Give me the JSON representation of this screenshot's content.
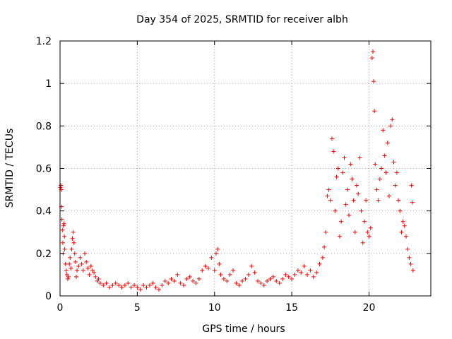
{
  "chart_data": {
    "type": "scatter",
    "title": "Day 354 of 2025, SRMTID for receiver albh",
    "xlabel": "GPS time / hours",
    "ylabel": "SRMTID / TECUs",
    "xlim": [
      0,
      24
    ],
    "ylim": [
      0,
      1.2
    ],
    "xticks": [
      0,
      5,
      10,
      15,
      20
    ],
    "xtick_labels": [
      "0",
      "5",
      "10",
      "15",
      "20"
    ],
    "yticks": [
      0,
      0.2,
      0.4,
      0.6,
      0.8,
      1.0,
      1.2
    ],
    "ytick_labels": [
      "0",
      "0.2",
      "0.4",
      "0.6",
      "0.8",
      "1",
      "1.2"
    ],
    "grid": true,
    "marker": "+",
    "color": "#ff0000",
    "series": [
      {
        "name": "SRMTID",
        "points": [
          [
            0.02,
            0.51
          ],
          [
            0.05,
            0.52
          ],
          [
            0.08,
            0.5
          ],
          [
            0.1,
            0.42
          ],
          [
            0.12,
            0.36
          ],
          [
            0.15,
            0.31
          ],
          [
            0.18,
            0.25
          ],
          [
            0.2,
            0.2
          ],
          [
            0.22,
            0.33
          ],
          [
            0.25,
            0.34
          ],
          [
            0.28,
            0.28
          ],
          [
            0.3,
            0.22
          ],
          [
            0.35,
            0.15
          ],
          [
            0.4,
            0.12
          ],
          [
            0.45,
            0.1
          ],
          [
            0.5,
            0.08
          ],
          [
            0.55,
            0.09
          ],
          [
            0.6,
            0.15
          ],
          [
            0.65,
            0.18
          ],
          [
            0.7,
            0.13
          ],
          [
            0.75,
            0.22
          ],
          [
            0.8,
            0.27
          ],
          [
            0.85,
            0.3
          ],
          [
            0.9,
            0.25
          ],
          [
            0.95,
            0.2
          ],
          [
            1.0,
            0.16
          ],
          [
            1.05,
            0.09
          ],
          [
            1.1,
            0.12
          ],
          [
            1.2,
            0.14
          ],
          [
            1.3,
            0.18
          ],
          [
            1.4,
            0.15
          ],
          [
            1.5,
            0.12
          ],
          [
            1.6,
            0.2
          ],
          [
            1.7,
            0.16
          ],
          [
            1.8,
            0.13
          ],
          [
            1.9,
            0.1
          ],
          [
            2.0,
            0.14
          ],
          [
            2.1,
            0.12
          ],
          [
            2.2,
            0.11
          ],
          [
            2.3,
            0.09
          ],
          [
            2.4,
            0.07
          ],
          [
            2.5,
            0.08
          ],
          [
            2.6,
            0.06
          ],
          [
            2.8,
            0.05
          ],
          [
            3.0,
            0.06
          ],
          [
            3.2,
            0.04
          ],
          [
            3.4,
            0.05
          ],
          [
            3.6,
            0.06
          ],
          [
            3.8,
            0.05
          ],
          [
            4.0,
            0.04
          ],
          [
            4.2,
            0.05
          ],
          [
            4.4,
            0.06
          ],
          [
            4.6,
            0.04
          ],
          [
            4.8,
            0.05
          ],
          [
            5.0,
            0.04
          ],
          [
            5.2,
            0.03
          ],
          [
            5.4,
            0.05
          ],
          [
            5.6,
            0.04
          ],
          [
            5.8,
            0.05
          ],
          [
            6.0,
            0.06
          ],
          [
            6.2,
            0.04
          ],
          [
            6.4,
            0.03
          ],
          [
            6.6,
            0.05
          ],
          [
            6.8,
            0.07
          ],
          [
            7.0,
            0.06
          ],
          [
            7.2,
            0.08
          ],
          [
            7.4,
            0.07
          ],
          [
            7.6,
            0.1
          ],
          [
            7.8,
            0.06
          ],
          [
            8.0,
            0.05
          ],
          [
            8.2,
            0.08
          ],
          [
            8.4,
            0.09
          ],
          [
            8.6,
            0.07
          ],
          [
            8.8,
            0.06
          ],
          [
            9.0,
            0.08
          ],
          [
            9.2,
            0.12
          ],
          [
            9.4,
            0.14
          ],
          [
            9.6,
            0.13
          ],
          [
            9.8,
            0.18
          ],
          [
            10.0,
            0.12
          ],
          [
            10.1,
            0.2
          ],
          [
            10.2,
            0.22
          ],
          [
            10.3,
            0.15
          ],
          [
            10.4,
            0.1
          ],
          [
            10.6,
            0.08
          ],
          [
            10.8,
            0.07
          ],
          [
            11.0,
            0.1
          ],
          [
            11.2,
            0.12
          ],
          [
            11.4,
            0.06
          ],
          [
            11.6,
            0.05
          ],
          [
            11.8,
            0.07
          ],
          [
            12.0,
            0.08
          ],
          [
            12.2,
            0.1
          ],
          [
            12.4,
            0.14
          ],
          [
            12.6,
            0.11
          ],
          [
            12.8,
            0.07
          ],
          [
            13.0,
            0.06
          ],
          [
            13.2,
            0.05
          ],
          [
            13.4,
            0.07
          ],
          [
            13.6,
            0.08
          ],
          [
            13.8,
            0.09
          ],
          [
            14.0,
            0.07
          ],
          [
            14.2,
            0.06
          ],
          [
            14.4,
            0.08
          ],
          [
            14.6,
            0.1
          ],
          [
            14.8,
            0.09
          ],
          [
            15.0,
            0.08
          ],
          [
            15.2,
            0.1
          ],
          [
            15.4,
            0.12
          ],
          [
            15.6,
            0.11
          ],
          [
            15.8,
            0.14
          ],
          [
            16.0,
            0.1
          ],
          [
            16.2,
            0.12
          ],
          [
            16.4,
            0.09
          ],
          [
            16.6,
            0.11
          ],
          [
            16.8,
            0.15
          ],
          [
            17.0,
            0.18
          ],
          [
            17.1,
            0.23
          ],
          [
            17.2,
            0.3
          ],
          [
            17.3,
            0.47
          ],
          [
            17.4,
            0.5
          ],
          [
            17.5,
            0.45
          ],
          [
            17.6,
            0.74
          ],
          [
            17.7,
            0.68
          ],
          [
            17.8,
            0.4
          ],
          [
            17.9,
            0.56
          ],
          [
            18.0,
            0.6
          ],
          [
            18.1,
            0.28
          ],
          [
            18.2,
            0.35
          ],
          [
            18.3,
            0.58
          ],
          [
            18.4,
            0.65
          ],
          [
            18.5,
            0.43
          ],
          [
            18.6,
            0.5
          ],
          [
            18.7,
            0.38
          ],
          [
            18.8,
            0.62
          ],
          [
            18.9,
            0.55
          ],
          [
            19.0,
            0.45
          ],
          [
            19.1,
            0.3
          ],
          [
            19.2,
            0.52
          ],
          [
            19.3,
            0.48
          ],
          [
            19.4,
            0.65
          ],
          [
            19.5,
            0.4
          ],
          [
            19.6,
            0.25
          ],
          [
            19.7,
            0.35
          ],
          [
            19.8,
            0.45
          ],
          [
            19.9,
            0.3
          ],
          [
            20.0,
            0.28
          ],
          [
            20.1,
            0.32
          ],
          [
            20.2,
            1.12
          ],
          [
            20.25,
            1.15
          ],
          [
            20.3,
            1.01
          ],
          [
            20.35,
            0.87
          ],
          [
            20.4,
            0.62
          ],
          [
            20.5,
            0.5
          ],
          [
            20.6,
            0.45
          ],
          [
            20.7,
            0.55
          ],
          [
            20.8,
            0.6
          ],
          [
            20.9,
            0.78
          ],
          [
            21.0,
            0.66
          ],
          [
            21.1,
            0.58
          ],
          [
            21.2,
            0.72
          ],
          [
            21.3,
            0.47
          ],
          [
            21.4,
            0.8
          ],
          [
            21.5,
            0.83
          ],
          [
            21.6,
            0.63
          ],
          [
            21.7,
            0.52
          ],
          [
            21.8,
            0.58
          ],
          [
            21.9,
            0.45
          ],
          [
            22.0,
            0.4
          ],
          [
            22.1,
            0.3
          ],
          [
            22.2,
            0.35
          ],
          [
            22.3,
            0.33
          ],
          [
            22.4,
            0.28
          ],
          [
            22.5,
            0.22
          ],
          [
            22.6,
            0.18
          ],
          [
            22.7,
            0.15
          ],
          [
            22.75,
            0.52
          ],
          [
            22.8,
            0.44
          ],
          [
            22.85,
            0.12
          ]
        ]
      }
    ]
  }
}
